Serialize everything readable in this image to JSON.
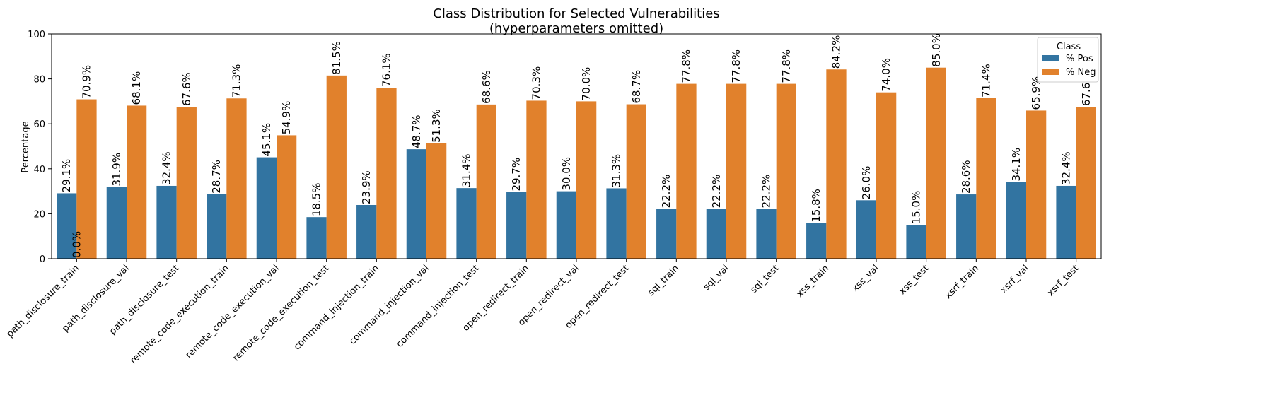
{
  "chart_data": {
    "type": "bar",
    "title": "Class Distribution for Selected Vulnerabilities",
    "subtitle": "(hyperparameters omitted)",
    "xlabel": "",
    "ylabel": "Percentage",
    "ylim": [
      0,
      100
    ],
    "yticks": [
      "0",
      "20",
      "40",
      "60",
      "80",
      "100"
    ],
    "grid": false,
    "legend": {
      "title": "Class",
      "position": "top-right"
    },
    "categories": [
      "path_disclosure_train",
      "path_disclosure_val",
      "path_disclosure_test",
      "remote_code_execution_train",
      "remote_code_execution_val",
      "remote_code_execution_test",
      "command_injection_train",
      "command_injection_val",
      "command_injection_test",
      "open_redirect_train",
      "open_redirect_val",
      "open_redirect_test",
      "sql_train",
      "sql_val",
      "sql_test",
      "xss_train",
      "xss_val",
      "xss_test",
      "xsrf_train",
      "xsrf_val",
      "xsrf_test"
    ],
    "series": [
      {
        "name": "% Pos",
        "color": "#3274a1",
        "values": [
          29.1,
          31.9,
          32.4,
          28.7,
          45.1,
          18.5,
          23.9,
          48.7,
          31.4,
          29.7,
          30.0,
          31.3,
          22.2,
          22.2,
          22.2,
          15.8,
          26.0,
          15.0,
          28.6,
          34.1,
          32.4
        ],
        "labels": [
          "29.1%",
          "31.9%",
          "32.4%",
          "28.7%",
          "45.1%",
          "18.5%",
          "23.9%",
          "48.7%",
          "31.4%",
          "29.7%",
          "30.0%",
          "31.3%",
          "22.2%",
          "22.2%",
          "22.2%",
          "15.8%",
          "26.0%",
          "15.0%",
          "28.6%",
          "34.1%",
          "32.4%"
        ]
      },
      {
        "name": "% Neg",
        "color": "#e1812c",
        "values": [
          70.9,
          68.1,
          67.6,
          71.3,
          54.9,
          81.5,
          76.1,
          51.3,
          68.6,
          70.3,
          70.0,
          68.7,
          77.8,
          77.8,
          77.8,
          84.2,
          74.0,
          85.0,
          71.4,
          65.9,
          67.6
        ],
        "labels": [
          "70.9%",
          "68.1%",
          "67.6%",
          "71.3%",
          "54.9%",
          "81.5%",
          "76.1%",
          "51.3%",
          "68.6%",
          "70.3%",
          "70.0%",
          "68.7%",
          "77.8%",
          "77.8%",
          "77.8%",
          "84.2%",
          "74.0%",
          "85.0%",
          "71.4%",
          "65.9%",
          "67.6%"
        ]
      }
    ],
    "extra_label": "0.0%"
  }
}
